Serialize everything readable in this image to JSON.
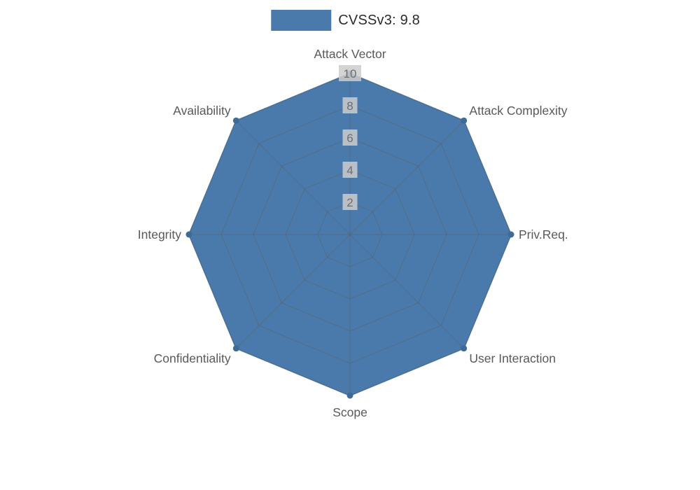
{
  "legend": {
    "label": "CVSSv3: 9.8",
    "swatch_color": "#4a7aab"
  },
  "chart_data": {
    "type": "radar",
    "title": "CVSSv3: 9.8",
    "categories": [
      "Attack Vector",
      "Attack Complexity",
      "Priv.Req.",
      "User Interaction",
      "Scope",
      "Confidentiality",
      "Integrity",
      "Availability"
    ],
    "series": [
      {
        "name": "CVSSv3: 9.8",
        "values": [
          10,
          10,
          10,
          10,
          10,
          10,
          10,
          10
        ]
      }
    ],
    "radial_ticks": [
      2,
      4,
      6,
      8,
      10
    ],
    "rlim": [
      0,
      10
    ],
    "grid": true,
    "legend_position": "top-center",
    "fill_color": "#4a7aab",
    "stroke_color": "#3d6a97",
    "grid_color": "#5a5a5a",
    "label_color": "#595959",
    "tick_text_color": "#6e6e6e",
    "tick_box_color": "#cccccc"
  }
}
